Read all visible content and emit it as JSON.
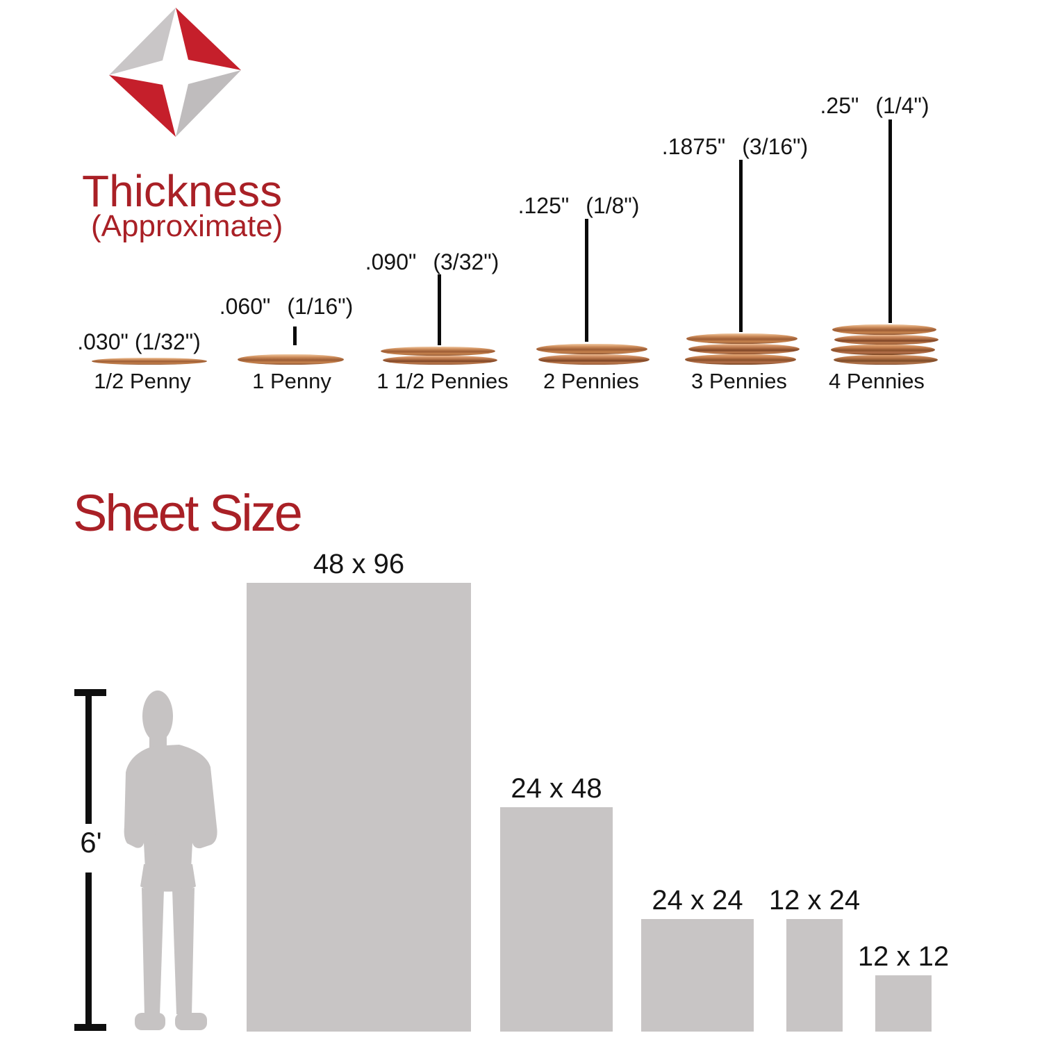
{
  "logo": {
    "name": "diamond-star-logo",
    "red": "#c51f2b",
    "gray_light": "#c9c6c7",
    "gray_dark": "#bfbcbd"
  },
  "colors": {
    "title_red": "#a92026",
    "bar_gray": "#c8c5c5",
    "silhouette_gray": "#c6c3c3",
    "text_black": "#141414"
  },
  "thickness_section": {
    "title": "Thickness",
    "subtitle": "(Approximate)",
    "items": [
      {
        "value": ".030\"",
        "fraction": "(1/32\")",
        "label": "1/2 Penny",
        "pennies": 0.5
      },
      {
        "value": ".060\"",
        "fraction": "(1/16\")",
        "label": "1 Penny",
        "pennies": 1
      },
      {
        "value": ".090\"",
        "fraction": "(3/32\")",
        "label": "1 1/2 Pennies",
        "pennies": 1.5
      },
      {
        "value": ".125\"",
        "fraction": "(1/8\")",
        "label": "2 Pennies",
        "pennies": 2
      },
      {
        "value": ".1875\"",
        "fraction": "(3/16\")",
        "label": "3 Pennies",
        "pennies": 3
      },
      {
        "value": ".25\"",
        "fraction": "(1/4\")",
        "label": "4 Pennies",
        "pennies": 4
      }
    ]
  },
  "sheet_section": {
    "title": "Sheet Size",
    "reference": {
      "label": "6'",
      "feet": 6
    },
    "bars": [
      {
        "label": "48 x 96",
        "width_in": 48,
        "height_in": 96
      },
      {
        "label": "24 x 48",
        "width_in": 24,
        "height_in": 48
      },
      {
        "label": "24 x 24",
        "width_in": 24,
        "height_in": 24
      },
      {
        "label": "12 x 24",
        "width_in": 12,
        "height_in": 24
      },
      {
        "label": "12 x 12",
        "width_in": 12,
        "height_in": 12
      }
    ]
  },
  "chart_data": {
    "type": "bar",
    "title": "Sheet Size",
    "categories": [
      "48 x 96",
      "24 x 48",
      "24 x 24",
      "12 x 24",
      "12 x 12"
    ],
    "values": [
      96,
      48,
      24,
      24,
      12
    ],
    "widths": [
      48,
      24,
      24,
      12,
      12
    ],
    "reference_height_label": "6'",
    "legend_position": "none",
    "grid": false
  }
}
